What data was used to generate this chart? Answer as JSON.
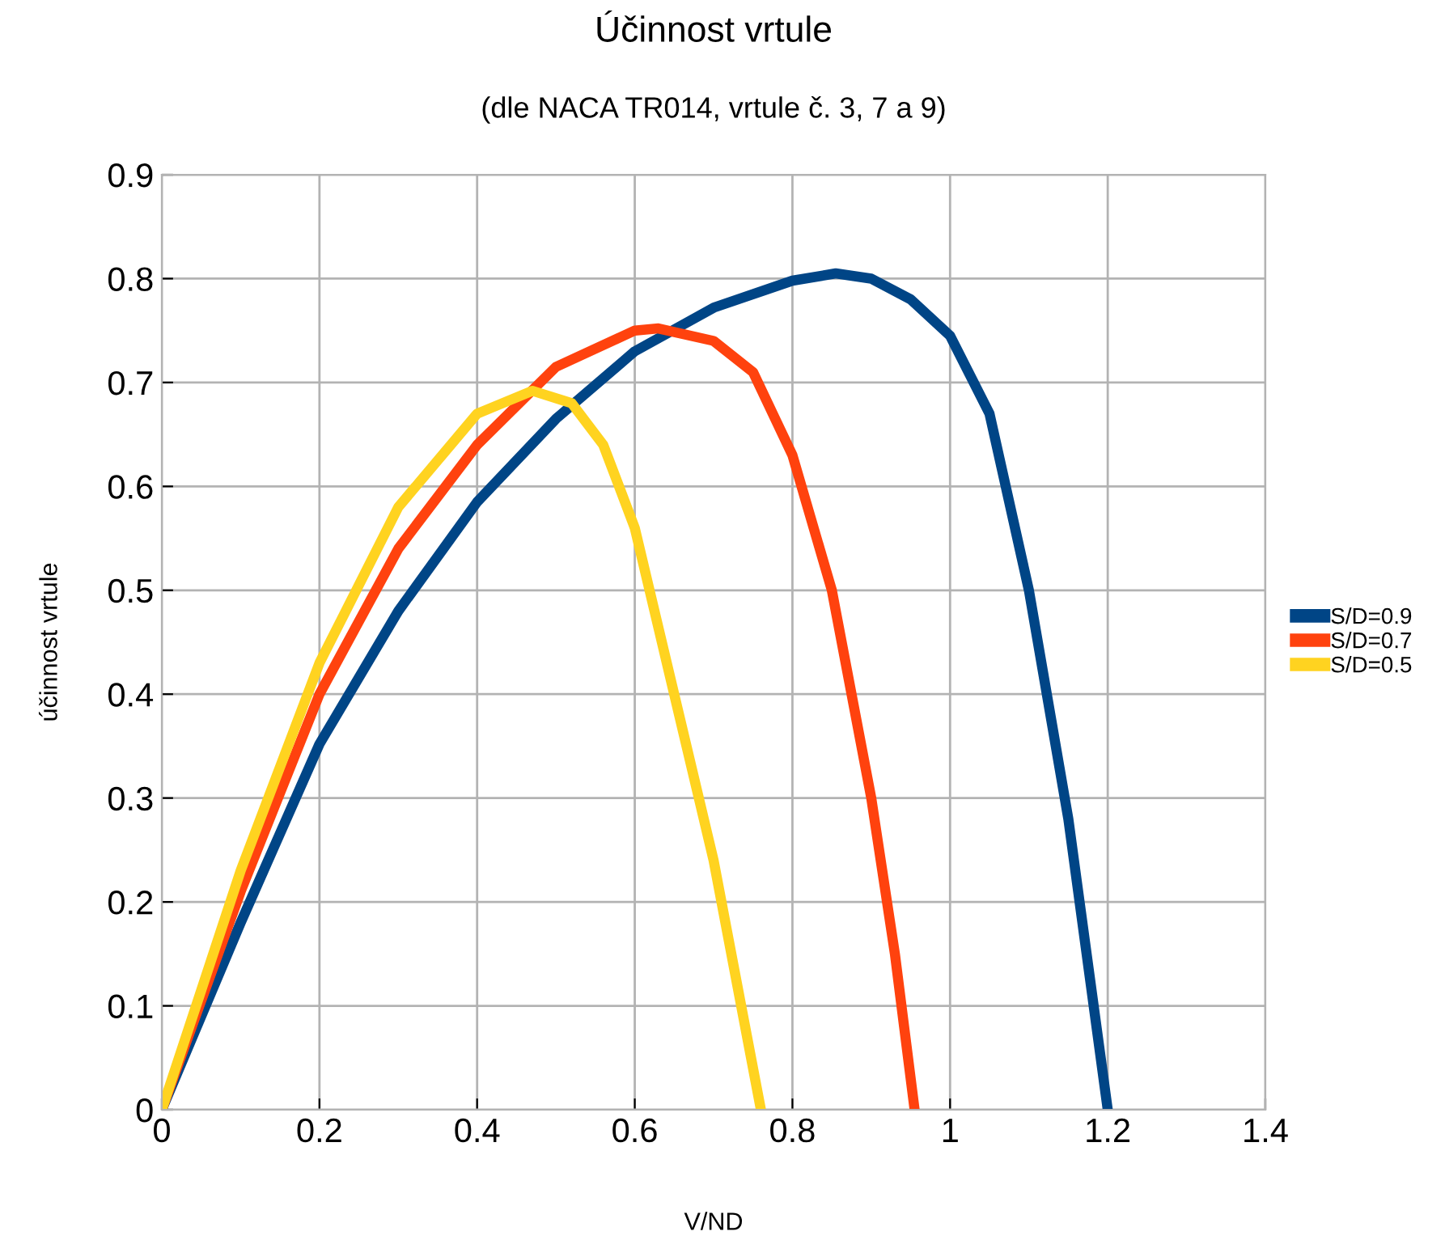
{
  "chart_data": {
    "type": "line",
    "title": "Účinnost vrtule",
    "subtitle": "(dle NACA TR014, vrtule č. 3, 7 a 9)",
    "xlabel": "V/ND",
    "ylabel": "účinnost vrtule",
    "xlim": [
      0,
      1.4
    ],
    "xticks": [
      0,
      0.2,
      0.4,
      0.6,
      0.8,
      1,
      1.2,
      1.4
    ],
    "ylim": [
      0,
      0.9
    ],
    "yticks": [
      0,
      0.1,
      0.2,
      0.3,
      0.4,
      0.5,
      0.6,
      0.7,
      0.8,
      0.9
    ],
    "grid": true,
    "legend": "right",
    "marker": "none",
    "line_style": "solid",
    "series": [
      {
        "name": "S/D=0.9",
        "color": "#004586",
        "x": [
          0,
          0.1,
          0.2,
          0.3,
          0.4,
          0.5,
          0.6,
          0.7,
          0.8,
          0.855,
          0.9,
          0.95,
          1.0,
          1.05,
          1.1,
          1.15,
          1.2
        ],
        "values": [
          0,
          0.18,
          0.352,
          0.48,
          0.585,
          0.665,
          0.73,
          0.772,
          0.798,
          0.805,
          0.8,
          0.78,
          0.745,
          0.67,
          0.5,
          0.28,
          0
        ]
      },
      {
        "name": "S/D=0.7",
        "color": "#ff420e",
        "x": [
          0,
          0.1,
          0.2,
          0.3,
          0.4,
          0.5,
          0.6,
          0.63,
          0.7,
          0.75,
          0.8,
          0.85,
          0.9,
          0.93,
          0.955
        ],
        "values": [
          0,
          0.21,
          0.4,
          0.54,
          0.64,
          0.715,
          0.75,
          0.752,
          0.74,
          0.71,
          0.63,
          0.5,
          0.3,
          0.15,
          0
        ]
      },
      {
        "name": "S/D=0.5",
        "color": "#ffd320",
        "x": [
          0,
          0.1,
          0.2,
          0.3,
          0.4,
          0.47,
          0.52,
          0.56,
          0.6,
          0.65,
          0.7,
          0.74,
          0.76
        ],
        "values": [
          0,
          0.23,
          0.43,
          0.58,
          0.67,
          0.692,
          0.68,
          0.64,
          0.56,
          0.4,
          0.24,
          0.08,
          0
        ]
      }
    ]
  }
}
